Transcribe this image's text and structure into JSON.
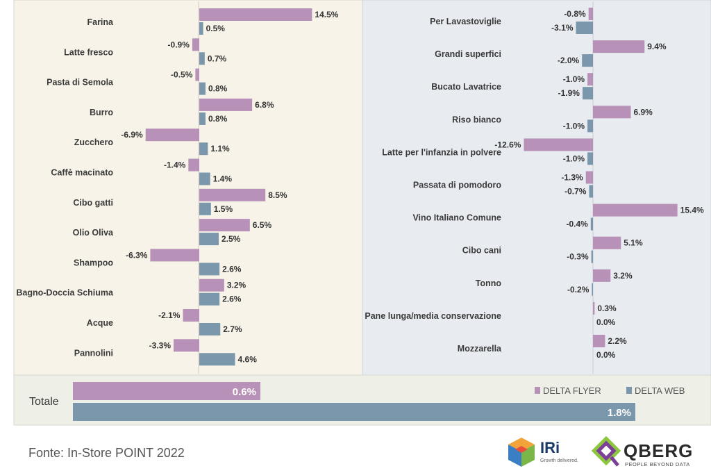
{
  "chart_data": [
    {
      "type": "bar",
      "orientation": "horizontal",
      "categories": [
        "Farina",
        "Latte fresco",
        "Pasta di Semola",
        "Burro",
        "Zucchero",
        "Caffè macinato",
        "Cibo gatti",
        "Olio Oliva",
        "Shampoo",
        "Bagno-Doccia Schiuma",
        "Acque",
        "Pannolini"
      ],
      "series": [
        {
          "name": "DELTA FLYER",
          "values": [
            14.5,
            -0.9,
            -0.5,
            6.8,
            -6.9,
            -1.4,
            8.5,
            6.5,
            -6.3,
            3.2,
            -2.1,
            -3.3
          ],
          "labels": [
            "14.5%",
            "-0.9%",
            "-0.5%",
            "6.8%",
            "-6.9%",
            "-1.4%",
            "8.5%",
            "6.5%",
            "-6.3%",
            "3.2%",
            "-2.1%",
            "-3.3%"
          ]
        },
        {
          "name": "DELTA WEB",
          "values": [
            0.5,
            0.7,
            0.8,
            0.8,
            1.1,
            1.4,
            1.5,
            2.5,
            2.6,
            2.6,
            2.7,
            4.6
          ],
          "labels": [
            "0.5%",
            "0.7%",
            "0.8%",
            "0.8%",
            "1.1%",
            "1.4%",
            "1.5%",
            "2.5%",
            "2.6%",
            "2.6%",
            "2.7%",
            "4.6%"
          ]
        }
      ]
    },
    {
      "type": "bar",
      "orientation": "horizontal",
      "categories": [
        "Per Lavastoviglie",
        "Grandi superfici",
        "Bucato Lavatrice",
        "Riso bianco",
        "Latte per l'infanzia in polvere",
        "Passata di pomodoro",
        "Vino Italiano Comune",
        "Cibo cani",
        "Tonno",
        "Pane lunga/media conservazione",
        "Mozzarella"
      ],
      "series": [
        {
          "name": "DELTA FLYER",
          "values": [
            -0.8,
            9.4,
            -1.0,
            6.9,
            -12.6,
            -1.3,
            15.4,
            5.1,
            3.2,
            0.3,
            2.2
          ],
          "labels": [
            "-0.8%",
            "9.4%",
            "-1.0%",
            "6.9%",
            "-12.6%",
            "-1.3%",
            "15.4%",
            "5.1%",
            "3.2%",
            "0.3%",
            "2.2%"
          ]
        },
        {
          "name": "DELTA WEB",
          "values": [
            -3.1,
            -2.0,
            -1.9,
            -1.0,
            -1.0,
            -0.7,
            -0.4,
            -0.3,
            -0.2,
            0.0,
            0.0
          ],
          "labels": [
            "-3.1%",
            "-2.0%",
            "-1.9%",
            "-1.0%",
            "-1.0%",
            "-0.7%",
            "-0.4%",
            "-0.3%",
            "-0.2%",
            "0.0%",
            "0.0%"
          ]
        }
      ]
    },
    {
      "type": "bar",
      "orientation": "horizontal",
      "categories": [
        "Totale"
      ],
      "series": [
        {
          "name": "DELTA FLYER",
          "values": [
            0.6
          ],
          "labels": [
            "0.6%"
          ]
        },
        {
          "name": "DELTA WEB",
          "values": [
            1.8
          ],
          "labels": [
            "1.8%"
          ]
        }
      ],
      "legend": {
        "position": "top-right",
        "entries": [
          "DELTA FLYER",
          "DELTA WEB"
        ]
      }
    }
  ],
  "colors": {
    "flyer": "#b791b8",
    "web": "#7a97ab",
    "panel_left": "#f7f3e8",
    "panel_right": "#e8ebf0",
    "panel_total": "#eef0e8"
  },
  "footer": {
    "source": "Fonte: In-Store POINT 2022"
  },
  "logos": {
    "iri": {
      "name": "IRi",
      "tagline": "Growth delivered."
    },
    "qberg": {
      "name": "QBERG",
      "tagline": "PEOPLE BEYOND DATA"
    }
  }
}
